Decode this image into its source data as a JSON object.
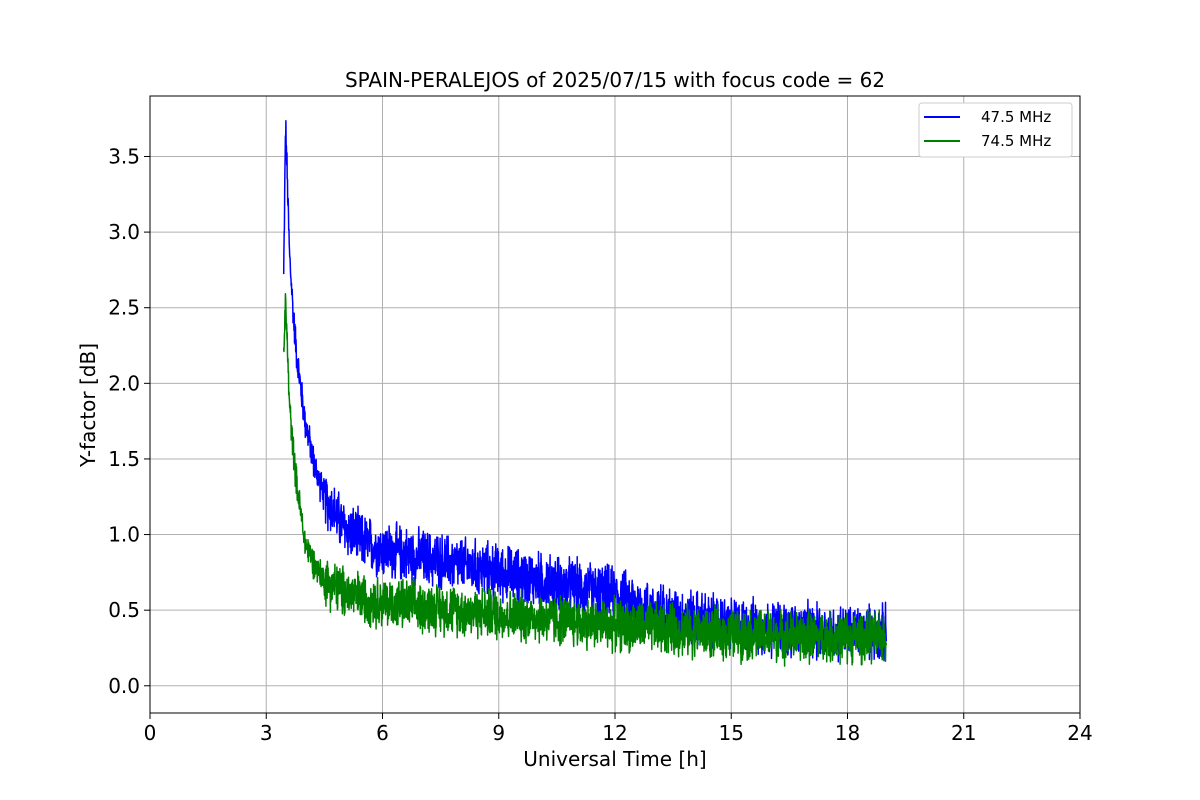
{
  "chart_data": {
    "type": "line",
    "title": "SPAIN-PERALEJOS of 2025/07/15 with focus code = 62",
    "xlabel": "Universal Time [h]",
    "ylabel": "Y-factor [dB]",
    "xlim": [
      0,
      24
    ],
    "ylim": [
      -0.18,
      3.9
    ],
    "xticks": [
      0,
      3,
      6,
      9,
      12,
      15,
      18,
      21,
      24
    ],
    "xtick_labels": [
      "0",
      "3",
      "6",
      "9",
      "12",
      "15",
      "18",
      "21",
      "24"
    ],
    "yticks": [
      0.0,
      0.5,
      1.0,
      1.5,
      2.0,
      2.5,
      3.0,
      3.5
    ],
    "ytick_labels": [
      "0.0",
      "0.5",
      "1.0",
      "1.5",
      "2.0",
      "2.5",
      "3.0",
      "3.5"
    ],
    "grid": true,
    "legend_position": "top-right",
    "x_range_of_data": [
      3.45,
      19.0
    ],
    "series": [
      {
        "name": "47.5 MHz",
        "color": "#0000ff",
        "x": [
          3.45,
          3.5,
          3.6,
          3.7,
          3.8,
          4.0,
          4.25,
          4.5,
          5.0,
          5.5,
          6.0,
          7.0,
          8.0,
          9.0,
          10.0,
          11.0,
          12.0,
          13.0,
          14.0,
          15.0,
          16.0,
          17.0,
          18.0,
          19.0
        ],
        "y": [
          2.7,
          3.72,
          2.85,
          2.45,
          2.15,
          1.75,
          1.45,
          1.25,
          1.05,
          0.95,
          0.9,
          0.85,
          0.8,
          0.75,
          0.7,
          0.65,
          0.6,
          0.5,
          0.45,
          0.4,
          0.38,
          0.36,
          0.35,
          0.35
        ],
        "noise_band": 0.22
      },
      {
        "name": "74.5 MHz",
        "color": "#008000",
        "x": [
          3.45,
          3.5,
          3.6,
          3.7,
          3.8,
          4.0,
          4.25,
          4.5,
          5.0,
          5.5,
          6.0,
          7.0,
          8.0,
          9.0,
          10.0,
          11.0,
          12.0,
          13.0,
          14.0,
          15.0,
          16.0,
          17.0,
          18.0,
          19.0
        ],
        "y": [
          2.2,
          2.55,
          1.85,
          1.55,
          1.3,
          0.95,
          0.8,
          0.7,
          0.62,
          0.58,
          0.55,
          0.52,
          0.5,
          0.47,
          0.45,
          0.42,
          0.4,
          0.38,
          0.36,
          0.34,
          0.33,
          0.32,
          0.32,
          0.32
        ],
        "noise_band": 0.2
      }
    ]
  }
}
